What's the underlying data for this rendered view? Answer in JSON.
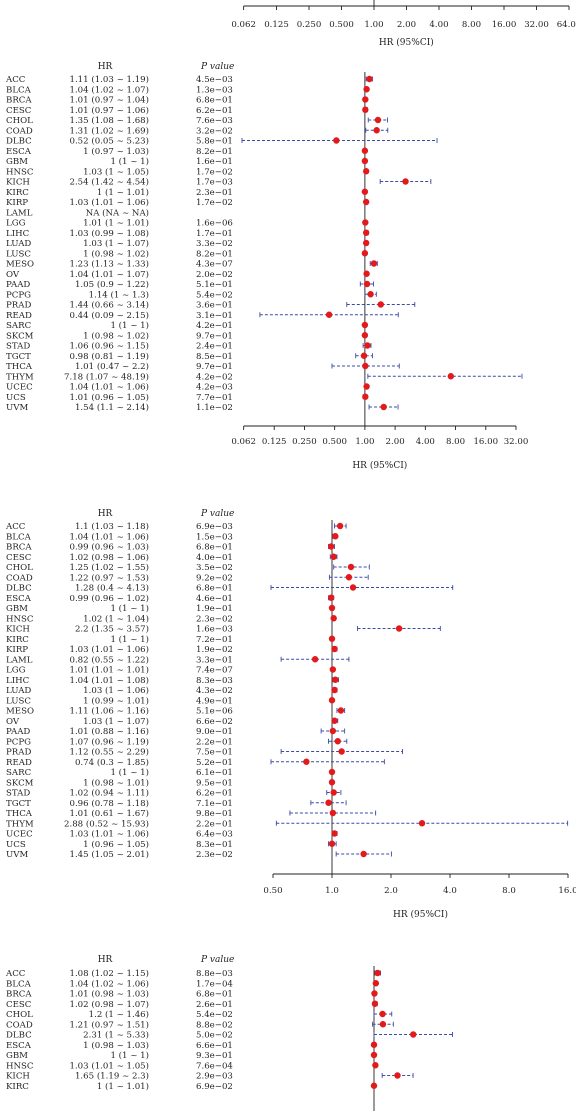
{
  "chart_data": [
    {
      "type": "forest",
      "partial": "axis-only",
      "xlabel": "HR (95%CI)",
      "x_ticks": [
        "0.062",
        "0.125",
        "0.250",
        "0.500",
        "1.00",
        "2.00",
        "4.00",
        "8.00",
        "16.00",
        "32.00",
        "64.00"
      ],
      "x_scale": "log2",
      "reference_line": 1
    },
    {
      "type": "forest",
      "col_hr": "HR",
      "col_p": "P value",
      "xlabel": "HR (95%CI)",
      "x_ticks": [
        "0.062",
        "0.125",
        "0.250",
        "0.500",
        "1.00",
        "2.00",
        "4.00",
        "8.00",
        "16.00",
        "32.00"
      ],
      "x_scale": "log2",
      "xlim": [
        0.062,
        64
      ],
      "reference_line": 1,
      "rows": [
        {
          "cancer": "ACC",
          "hr_text": "1.11 (1.03 ~ 1.19)",
          "p_text": "4.5e−03",
          "hr": 1.11,
          "lo": 1.03,
          "hi": 1.19
        },
        {
          "cancer": "BLCA",
          "hr_text": "1.04 (1.02 ~ 1.07)",
          "p_text": "1.3e−03",
          "hr": 1.04,
          "lo": 1.02,
          "hi": 1.07
        },
        {
          "cancer": "BRCA",
          "hr_text": "1.01 (0.97 ~ 1.04)",
          "p_text": "6.8e−01",
          "hr": 1.01,
          "lo": 0.97,
          "hi": 1.04
        },
        {
          "cancer": "CESC",
          "hr_text": "1.01 (0.97 ~ 1.06)",
          "p_text": "6.2e−01",
          "hr": 1.01,
          "lo": 0.97,
          "hi": 1.06
        },
        {
          "cancer": "CHOL",
          "hr_text": "1.35 (1.08 ~ 1.68)",
          "p_text": "7.6e−03",
          "hr": 1.35,
          "lo": 1.08,
          "hi": 1.68
        },
        {
          "cancer": "COAD",
          "hr_text": "1.31 (1.02 ~ 1.69)",
          "p_text": "3.2e−02",
          "hr": 1.31,
          "lo": 1.02,
          "hi": 1.69
        },
        {
          "cancer": "DLBC",
          "hr_text": "0.52 (0.05 ~ 5.23)",
          "p_text": "5.8e−01",
          "hr": 0.52,
          "lo": 0.05,
          "hi": 5.23
        },
        {
          "cancer": "ESCA",
          "hr_text": "1 (0.97 ~ 1.03)",
          "p_text": "8.2e−01",
          "hr": 1.0,
          "lo": 0.97,
          "hi": 1.03
        },
        {
          "cancer": "GBM",
          "hr_text": "1 (1 ~ 1)",
          "p_text": "1.6e−01",
          "hr": 1.0,
          "lo": 1.0,
          "hi": 1.0
        },
        {
          "cancer": "HNSC",
          "hr_text": "1.03 (1 ~ 1.05)",
          "p_text": "1.7e−02",
          "hr": 1.03,
          "lo": 1.0,
          "hi": 1.05
        },
        {
          "cancer": "KICH",
          "hr_text": "2.54 (1.42 ~ 4.54)",
          "p_text": "1.7e−03",
          "hr": 2.54,
          "lo": 1.42,
          "hi": 4.54
        },
        {
          "cancer": "KIRC",
          "hr_text": "1 (1 ~ 1.01)",
          "p_text": "2.3e−01",
          "hr": 1.0,
          "lo": 1.0,
          "hi": 1.01
        },
        {
          "cancer": "KIRP",
          "hr_text": "1.03 (1.01 ~ 1.06)",
          "p_text": "1.7e−02",
          "hr": 1.03,
          "lo": 1.01,
          "hi": 1.06
        },
        {
          "cancer": "LAML",
          "hr_text": "NA (NA ~ NA)",
          "p_text": "",
          "hr": null,
          "lo": null,
          "hi": null
        },
        {
          "cancer": "LGG",
          "hr_text": "1.01 (1 ~ 1.01)",
          "p_text": "1.6e−06",
          "hr": 1.01,
          "lo": 1.0,
          "hi": 1.01
        },
        {
          "cancer": "LIHC",
          "hr_text": "1.03 (0.99 ~ 1.08)",
          "p_text": "1.7e−01",
          "hr": 1.03,
          "lo": 0.99,
          "hi": 1.08
        },
        {
          "cancer": "LUAD",
          "hr_text": "1.03 (1 ~ 1.07)",
          "p_text": "3.3e−02",
          "hr": 1.03,
          "lo": 1.0,
          "hi": 1.07
        },
        {
          "cancer": "LUSC",
          "hr_text": "1 (0.98 ~ 1.02)",
          "p_text": "8.2e−01",
          "hr": 1.0,
          "lo": 0.98,
          "hi": 1.02
        },
        {
          "cancer": "MESO",
          "hr_text": "1.23 (1.13 ~ 1.33)",
          "p_text": "4.3e−07",
          "hr": 1.23,
          "lo": 1.13,
          "hi": 1.33
        },
        {
          "cancer": "OV",
          "hr_text": "1.04 (1.01 ~ 1.07)",
          "p_text": "2.0e−02",
          "hr": 1.04,
          "lo": 1.01,
          "hi": 1.07
        },
        {
          "cancer": "PAAD",
          "hr_text": "1.05 (0.9 ~ 1.22)",
          "p_text": "5.1e−01",
          "hr": 1.05,
          "lo": 0.9,
          "hi": 1.22
        },
        {
          "cancer": "PCPG",
          "hr_text": "1.14 (1 ~ 1.3)",
          "p_text": "5.4e−02",
          "hr": 1.14,
          "lo": 1.0,
          "hi": 1.3
        },
        {
          "cancer": "PRAD",
          "hr_text": "1.44 (0.66 ~ 3.14)",
          "p_text": "3.6e−01",
          "hr": 1.44,
          "lo": 0.66,
          "hi": 3.14
        },
        {
          "cancer": "READ",
          "hr_text": "0.44 (0.09 ~ 2.15)",
          "p_text": "3.1e−01",
          "hr": 0.44,
          "lo": 0.09,
          "hi": 2.15
        },
        {
          "cancer": "SARC",
          "hr_text": "1 (1 ~ 1)",
          "p_text": "4.2e−01",
          "hr": 1.0,
          "lo": 1.0,
          "hi": 1.0
        },
        {
          "cancer": "SKCM",
          "hr_text": "1 (0.98 ~ 1.02)",
          "p_text": "9.7e−01",
          "hr": 1.0,
          "lo": 0.98,
          "hi": 1.02
        },
        {
          "cancer": "STAD",
          "hr_text": "1.06 (0.96 ~ 1.15)",
          "p_text": "2.4e−01",
          "hr": 1.06,
          "lo": 0.96,
          "hi": 1.15
        },
        {
          "cancer": "TGCT",
          "hr_text": "0.98 (0.81 ~ 1.19)",
          "p_text": "8.5e−01",
          "hr": 0.98,
          "lo": 0.81,
          "hi": 1.19
        },
        {
          "cancer": "THCA",
          "hr_text": "1.01 (0.47 ~ 2.2)",
          "p_text": "9.7e−01",
          "hr": 1.01,
          "lo": 0.47,
          "hi": 2.2
        },
        {
          "cancer": "THYM",
          "hr_text": "7.18 (1.07 ~ 48.19)",
          "p_text": "4.2e−02",
          "hr": 7.18,
          "lo": 1.07,
          "hi": 48.19
        },
        {
          "cancer": "UCEC",
          "hr_text": "1.04 (1.01 ~ 1.06)",
          "p_text": "4.2e−03",
          "hr": 1.04,
          "lo": 1.01,
          "hi": 1.06
        },
        {
          "cancer": "UCS",
          "hr_text": "1.01 (0.96 ~ 1.05)",
          "p_text": "7.7e−01",
          "hr": 1.01,
          "lo": 0.96,
          "hi": 1.05
        },
        {
          "cancer": "UVM",
          "hr_text": "1.54 (1.1 ~ 2.14)",
          "p_text": "1.1e−02",
          "hr": 1.54,
          "lo": 1.1,
          "hi": 2.14
        }
      ]
    },
    {
      "type": "forest",
      "col_hr": "HR",
      "col_p": "P value",
      "xlabel": "HR (95%CI)",
      "x_ticks": [
        "0.50",
        "1.0",
        "2.0",
        "4.0",
        "8.0",
        "16.0"
      ],
      "x_scale": "log2",
      "xlim": [
        0.5,
        16
      ],
      "reference_line": 1,
      "rows": [
        {
          "cancer": "ACC",
          "hr_text": "1.1 (1.03 ~ 1.18)",
          "p_text": "6.9e−03",
          "hr": 1.1,
          "lo": 1.03,
          "hi": 1.18
        },
        {
          "cancer": "BLCA",
          "hr_text": "1.04 (1.01 ~ 1.06)",
          "p_text": "1.5e−03",
          "hr": 1.04,
          "lo": 1.01,
          "hi": 1.06
        },
        {
          "cancer": "BRCA",
          "hr_text": "0.99 (0.96 ~ 1.03)",
          "p_text": "6.8e−01",
          "hr": 0.99,
          "lo": 0.96,
          "hi": 1.03
        },
        {
          "cancer": "CESC",
          "hr_text": "1.02 (0.98 ~ 1.06)",
          "p_text": "4.0e−01",
          "hr": 1.02,
          "lo": 0.98,
          "hi": 1.06
        },
        {
          "cancer": "CHOL",
          "hr_text": "1.25 (1.02 ~ 1.55)",
          "p_text": "3.5e−02",
          "hr": 1.25,
          "lo": 1.02,
          "hi": 1.55
        },
        {
          "cancer": "COAD",
          "hr_text": "1.22 (0.97 ~ 1.53)",
          "p_text": "9.2e−02",
          "hr": 1.22,
          "lo": 0.97,
          "hi": 1.53
        },
        {
          "cancer": "DLBC",
          "hr_text": "1.28 (0.4 ~ 4.13)",
          "p_text": "6.8e−01",
          "hr": 1.28,
          "lo": 0.4,
          "hi": 4.13
        },
        {
          "cancer": "ESCA",
          "hr_text": "0.99 (0.96 ~ 1.02)",
          "p_text": "4.6e−01",
          "hr": 0.99,
          "lo": 0.96,
          "hi": 1.02
        },
        {
          "cancer": "GBM",
          "hr_text": "1 (1 ~ 1)",
          "p_text": "1.9e−01",
          "hr": 1.0,
          "lo": 1.0,
          "hi": 1.0
        },
        {
          "cancer": "HNSC",
          "hr_text": "1.02 (1 ~ 1.04)",
          "p_text": "2.3e−02",
          "hr": 1.02,
          "lo": 1.0,
          "hi": 1.04
        },
        {
          "cancer": "KICH",
          "hr_text": "2.2 (1.35 ~ 3.57)",
          "p_text": "1.6e−03",
          "hr": 2.2,
          "lo": 1.35,
          "hi": 3.57
        },
        {
          "cancer": "KIRC",
          "hr_text": "1 (1 ~ 1)",
          "p_text": "7.2e−01",
          "hr": 1.0,
          "lo": 1.0,
          "hi": 1.0
        },
        {
          "cancer": "KIRP",
          "hr_text": "1.03 (1.01 ~ 1.06)",
          "p_text": "1.9e−02",
          "hr": 1.03,
          "lo": 1.01,
          "hi": 1.06
        },
        {
          "cancer": "LAML",
          "hr_text": "0.82 (0.55 ~ 1.22)",
          "p_text": "3.3e−01",
          "hr": 0.82,
          "lo": 0.55,
          "hi": 1.22
        },
        {
          "cancer": "LGG",
          "hr_text": "1.01 (1.01 ~ 1.01)",
          "p_text": "7.4e−07",
          "hr": 1.01,
          "lo": 1.01,
          "hi": 1.01
        },
        {
          "cancer": "LIHC",
          "hr_text": "1.04 (1.01 ~ 1.08)",
          "p_text": "8.3e−03",
          "hr": 1.04,
          "lo": 1.01,
          "hi": 1.08
        },
        {
          "cancer": "LUAD",
          "hr_text": "1.03 (1 ~ 1.06)",
          "p_text": "4.3e−02",
          "hr": 1.03,
          "lo": 1.0,
          "hi": 1.06
        },
        {
          "cancer": "LUSC",
          "hr_text": "1 (0.99 ~ 1.01)",
          "p_text": "4.9e−01",
          "hr": 1.0,
          "lo": 0.99,
          "hi": 1.01
        },
        {
          "cancer": "MESO",
          "hr_text": "1.11 (1.06 ~ 1.16)",
          "p_text": "5.1e−06",
          "hr": 1.11,
          "lo": 1.06,
          "hi": 1.16
        },
        {
          "cancer": "OV",
          "hr_text": "1.03 (1 ~ 1.07)",
          "p_text": "6.6e−02",
          "hr": 1.03,
          "lo": 1.0,
          "hi": 1.07
        },
        {
          "cancer": "PAAD",
          "hr_text": "1.01 (0.88 ~ 1.16)",
          "p_text": "9.0e−01",
          "hr": 1.01,
          "lo": 0.88,
          "hi": 1.16
        },
        {
          "cancer": "PCPG",
          "hr_text": "1.07 (0.96 ~ 1.19)",
          "p_text": "2.2e−01",
          "hr": 1.07,
          "lo": 0.96,
          "hi": 1.19
        },
        {
          "cancer": "PRAD",
          "hr_text": "1.12 (0.55 ~ 2.29)",
          "p_text": "7.5e−01",
          "hr": 1.12,
          "lo": 0.55,
          "hi": 2.29
        },
        {
          "cancer": "READ",
          "hr_text": "0.74 (0.3 ~ 1.85)",
          "p_text": "5.2e−01",
          "hr": 0.74,
          "lo": 0.3,
          "hi": 1.85
        },
        {
          "cancer": "SARC",
          "hr_text": "1 (1 ~ 1)",
          "p_text": "6.1e−01",
          "hr": 1.0,
          "lo": 1.0,
          "hi": 1.0
        },
        {
          "cancer": "SKCM",
          "hr_text": "1 (0.98 ~ 1.01)",
          "p_text": "9.5e−01",
          "hr": 1.0,
          "lo": 0.98,
          "hi": 1.01
        },
        {
          "cancer": "STAD",
          "hr_text": "1.02 (0.94 ~ 1.11)",
          "p_text": "6.2e−01",
          "hr": 1.02,
          "lo": 0.94,
          "hi": 1.11
        },
        {
          "cancer": "TGCT",
          "hr_text": "0.96 (0.78 ~ 1.18)",
          "p_text": "7.1e−01",
          "hr": 0.96,
          "lo": 0.78,
          "hi": 1.18
        },
        {
          "cancer": "THCA",
          "hr_text": "1.01 (0.61 ~ 1.67)",
          "p_text": "9.8e−01",
          "hr": 1.01,
          "lo": 0.61,
          "hi": 1.67
        },
        {
          "cancer": "THYM",
          "hr_text": "2.88 (0.52 ~ 15.93)",
          "p_text": "2.2e−01",
          "hr": 2.88,
          "lo": 0.52,
          "hi": 15.93
        },
        {
          "cancer": "UCEC",
          "hr_text": "1.03 (1.01 ~ 1.06)",
          "p_text": "6.4e−03",
          "hr": 1.03,
          "lo": 1.01,
          "hi": 1.06
        },
        {
          "cancer": "UCS",
          "hr_text": "1 (0.96 ~ 1.05)",
          "p_text": "8.3e−01",
          "hr": 1.0,
          "lo": 0.96,
          "hi": 1.05
        },
        {
          "cancer": "UVM",
          "hr_text": "1.45 (1.05 ~ 2.01)",
          "p_text": "2.3e−02",
          "hr": 1.45,
          "lo": 1.05,
          "hi": 2.01
        }
      ]
    },
    {
      "type": "forest",
      "partial": "cropped-bottom",
      "col_hr": "HR",
      "col_p": "P value",
      "x_scale": "log2",
      "xlim": [
        0.062,
        64
      ],
      "reference_line": 1,
      "rows": [
        {
          "cancer": "ACC",
          "hr_text": "1.08 (1.02 ~ 1.15)",
          "p_text": "8.8e−03",
          "hr": 1.08,
          "lo": 1.02,
          "hi": 1.15
        },
        {
          "cancer": "BLCA",
          "hr_text": "1.04 (1.02 ~ 1.06)",
          "p_text": "1.7e−04",
          "hr": 1.04,
          "lo": 1.02,
          "hi": 1.06
        },
        {
          "cancer": "BRCA",
          "hr_text": "1.01 (0.98 ~ 1.03)",
          "p_text": "6.8e−01",
          "hr": 1.01,
          "lo": 0.98,
          "hi": 1.03
        },
        {
          "cancer": "CESC",
          "hr_text": "1.02 (0.98 ~ 1.07)",
          "p_text": "2.6e−01",
          "hr": 1.02,
          "lo": 0.98,
          "hi": 1.07
        },
        {
          "cancer": "CHOL",
          "hr_text": "1.2 (1 ~ 1.46)",
          "p_text": "5.4e−02",
          "hr": 1.2,
          "lo": 1.0,
          "hi": 1.46
        },
        {
          "cancer": "COAD",
          "hr_text": "1.21 (0.97 ~ 1.51)",
          "p_text": "8.8e−02",
          "hr": 1.21,
          "lo": 0.97,
          "hi": 1.51
        },
        {
          "cancer": "DLBC",
          "hr_text": "2.31 (1 ~ 5.33)",
          "p_text": "5.0e−02",
          "hr": 2.31,
          "lo": 1.0,
          "hi": 5.33
        },
        {
          "cancer": "ESCA",
          "hr_text": "1 (0.98 ~ 1.03)",
          "p_text": "6.6e−01",
          "hr": 1.0,
          "lo": 0.98,
          "hi": 1.03
        },
        {
          "cancer": "GBM",
          "hr_text": "1 (1 ~ 1)",
          "p_text": "9.3e−01",
          "hr": 1.0,
          "lo": 1.0,
          "hi": 1.0
        },
        {
          "cancer": "HNSC",
          "hr_text": "1.03 (1.01 ~ 1.05)",
          "p_text": "7.6e−04",
          "hr": 1.03,
          "lo": 1.01,
          "hi": 1.05
        },
        {
          "cancer": "KICH",
          "hr_text": "1.65 (1.19 ~ 2.3)",
          "p_text": "2.9e−03",
          "hr": 1.65,
          "lo": 1.19,
          "hi": 2.3
        },
        {
          "cancer": "KIRC",
          "hr_text": "1 (1 ~ 1.01)",
          "p_text": "6.9e−02",
          "hr": 1.0,
          "lo": 1.0,
          "hi": 1.01
        }
      ]
    }
  ]
}
